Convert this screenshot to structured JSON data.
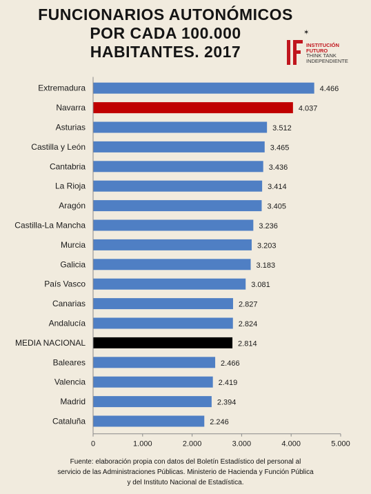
{
  "title": {
    "line1": "FUNCIONARIOS AUTONÓMICOS",
    "line2": "POR CADA 100.000",
    "line3": "HABITANTES. 2017"
  },
  "logo": {
    "line1": "INSTITUCIÓN",
    "line2": "FUTURO",
    "line3": "THINK TANK",
    "line4": "INDEPENDIENTE"
  },
  "colors": {
    "default_bar": "#4f7fc4",
    "highlight_bar": "#c00000",
    "national_bar": "#000000",
    "axis": "#8a8a8a",
    "background": "#f1ebde",
    "brand": "#c0161e"
  },
  "chart_data": {
    "type": "bar",
    "orientation": "horizontal",
    "categories": [
      "Extremadura",
      "Navarra",
      "Asturias",
      "Castilla y León",
      "Cantabria",
      "La Rioja",
      "Aragón",
      "Castilla-La Mancha",
      "Murcia",
      "Galicia",
      "País Vasco",
      "Canarias",
      "Andalucía",
      "MEDIA NACIONAL",
      "Baleares",
      "Valencia",
      "Madrid",
      "Cataluña"
    ],
    "values": [
      4466,
      4037,
      3512,
      3465,
      3436,
      3414,
      3405,
      3236,
      3203,
      3183,
      3081,
      2827,
      2824,
      2814,
      2466,
      2419,
      2394,
      2246
    ],
    "value_labels": [
      "4.466",
      "4.037",
      "3.512",
      "3.465",
      "3.436",
      "3.414",
      "3.405",
      "3.236",
      "3.203",
      "3.183",
      "3.081",
      "2.827",
      "2.824",
      "2.814",
      "2.466",
      "2.419",
      "2.394",
      "2.246"
    ],
    "highlight": {
      "Navarra": "red",
      "MEDIA NACIONAL": "black"
    },
    "xlim": [
      0,
      5000
    ],
    "xticks": [
      0,
      1000,
      2000,
      3000,
      4000,
      5000
    ],
    "xtick_labels": [
      "0",
      "1.000",
      "2.000",
      "3.000",
      "4.000",
      "5.000"
    ],
    "grid": false,
    "legend": "none"
  },
  "footer": {
    "line1": "Fuente: elaboración propia con datos del Boletín Estadístico del personal al",
    "line2": "servicio de las Administraciones Públicas. Ministerio de Hacienda y Función Pública",
    "line3": "y del Instituto Nacional de Estadística."
  }
}
